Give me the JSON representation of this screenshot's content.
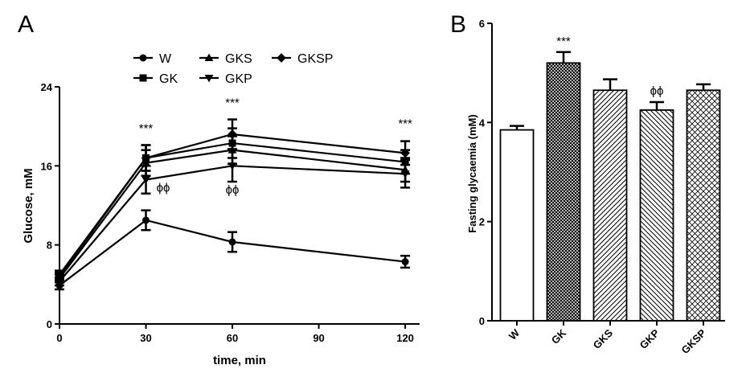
{
  "panels": {
    "a_label": "A",
    "b_label": "B"
  },
  "chart_data": [
    {
      "type": "line",
      "xlabel": "time, min",
      "ylabel": "Glucose, mM",
      "x": [
        0,
        30,
        60,
        120
      ],
      "xlim": [
        0,
        125
      ],
      "ylim": [
        0,
        24
      ],
      "xticks": [
        "0",
        "30",
        "60",
        "90",
        "120"
      ],
      "yticks": [
        "0",
        "8",
        "16",
        "24"
      ],
      "legend_position": "top",
      "series": [
        {
          "name": "W",
          "marker": "circle",
          "values": [
            3.9,
            10.5,
            8.3,
            6.3
          ],
          "err": [
            0.4,
            1.0,
            1.0,
            0.6
          ]
        },
        {
          "name": "GK",
          "marker": "square",
          "values": [
            5.0,
            16.8,
            18.3,
            16.4
          ],
          "err": [
            0.4,
            1.3,
            1.5,
            1.2
          ]
        },
        {
          "name": "GKS",
          "marker": "triangle-up",
          "values": [
            4.6,
            16.3,
            17.6,
            15.6
          ],
          "err": [
            0.4,
            1.3,
            1.4,
            1.2
          ]
        },
        {
          "name": "GKP",
          "marker": "triangle-down",
          "values": [
            4.3,
            14.6,
            16.0,
            15.2
          ],
          "err": [
            0.4,
            1.4,
            1.6,
            1.4
          ]
        },
        {
          "name": "GKSP",
          "marker": "diamond",
          "values": [
            4.8,
            16.8,
            19.2,
            17.3
          ],
          "err": [
            0.4,
            1.3,
            1.5,
            1.2
          ]
        }
      ],
      "annotations": [
        {
          "text": "***",
          "x": 30,
          "y": 19.4
        },
        {
          "text": "***",
          "x": 60,
          "y": 22.0
        },
        {
          "text": "***",
          "x": 120,
          "y": 19.9
        },
        {
          "text": "ϕϕ",
          "x": 36,
          "y": 13.4
        },
        {
          "text": "ϕϕ",
          "x": 60,
          "y": 13.2
        }
      ]
    },
    {
      "type": "bar",
      "ylabel": "Fasting glycaemia (mM)",
      "categories": [
        "W",
        "GK",
        "GKS",
        "GKP",
        "GKSP"
      ],
      "values": [
        3.85,
        5.2,
        4.65,
        4.25,
        4.65
      ],
      "err": [
        0.08,
        0.22,
        0.22,
        0.16,
        0.12
      ],
      "ylim": [
        0,
        6
      ],
      "yticks": [
        "0",
        "2",
        "4",
        "6"
      ],
      "fills": [
        "white",
        "dense-crosshatch",
        "diagonal-right",
        "diagonal-left",
        "crosshatch"
      ],
      "annotations": [
        {
          "text": "***",
          "category": "GK"
        },
        {
          "text": "ϕϕ",
          "category": "GKP"
        }
      ]
    }
  ]
}
